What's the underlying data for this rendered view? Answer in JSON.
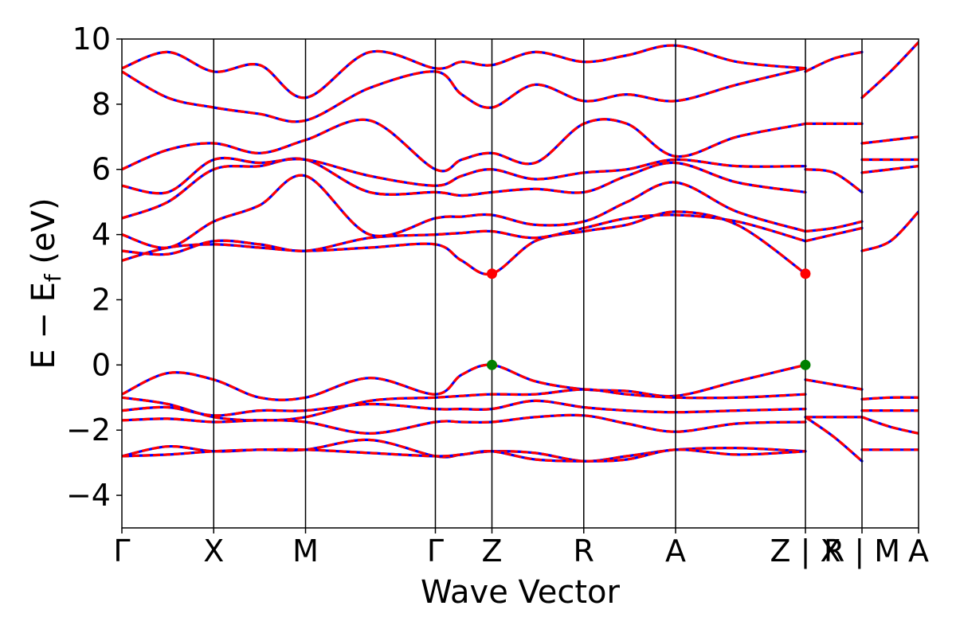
{
  "chart_data": {
    "type": "line",
    "title": "",
    "xlabel": "Wave Vector",
    "ylabel": "E − E_f (eV)",
    "ylabel_parts": {
      "main": "E − E",
      "sub": "f",
      "unit": " (eV)"
    },
    "ylim": [
      -5,
      10
    ],
    "yticks": [
      "−4",
      "−2",
      "0",
      "2",
      "4",
      "6",
      "8",
      "10"
    ],
    "ytick_values": [
      -4,
      -2,
      0,
      2,
      4,
      6,
      8,
      10
    ],
    "kpath_segments": [
      [
        0,
        4
      ],
      [
        4,
        7
      ]
    ],
    "high_symmetry_points": [
      {
        "label": "Γ",
        "k": 0.0
      },
      {
        "label": "X",
        "k": 1.0
      },
      {
        "label": "M",
        "k": 2.0
      },
      {
        "label": "Γ",
        "k": 3.414
      },
      {
        "label": "Z",
        "k": 4.03
      },
      {
        "label": "R",
        "k": 5.03
      },
      {
        "label": "A",
        "k": 6.03
      },
      {
        "label": "Z | X",
        "k": 7.444
      },
      {
        "label": "R | M",
        "k": 8.06
      },
      {
        "label": "A",
        "k": 8.676
      }
    ],
    "band_color_1": "#ff0000",
    "band_color_2": "#0000ff",
    "grid": false,
    "series": [
      {
        "x": [
          0,
          0.5,
          1.0,
          1.5,
          2.0,
          2.7,
          3.414,
          3.7,
          4.03,
          4.5,
          5.03,
          5.5,
          6.03,
          6.7,
          7.444
        ],
        "y": [
          -0.9,
          -0.25,
          -0.45,
          -1.0,
          -1.0,
          -0.4,
          -0.9,
          -0.3,
          0.0,
          -0.5,
          -0.75,
          -0.8,
          -0.95,
          -0.5,
          0.0
        ]
      },
      {
        "x": [
          0,
          0.5,
          1.0,
          1.5,
          2.0,
          2.7,
          3.414,
          3.7,
          4.03,
          4.5,
          5.03,
          5.5,
          6.03,
          6.7,
          7.444
        ],
        "y": [
          -1.0,
          -1.2,
          -1.6,
          -1.7,
          -1.6,
          -1.1,
          -1.0,
          -0.95,
          -0.9,
          -0.9,
          -0.75,
          -0.9,
          -1.0,
          -1.0,
          -0.9
        ]
      },
      {
        "x": [
          0,
          0.5,
          1.0,
          1.5,
          2.0,
          2.7,
          3.414,
          3.7,
          4.03,
          4.5,
          5.03,
          5.5,
          6.03,
          6.7,
          7.444
        ],
        "y": [
          -1.4,
          -1.3,
          -1.55,
          -1.4,
          -1.4,
          -1.2,
          -1.35,
          -1.35,
          -1.35,
          -1.1,
          -1.3,
          -1.4,
          -1.45,
          -1.4,
          -1.35
        ]
      },
      {
        "x": [
          0,
          0.5,
          1.0,
          1.5,
          2.0,
          2.7,
          3.414,
          3.7,
          4.03,
          4.5,
          5.03,
          5.5,
          6.03,
          6.7,
          7.444
        ],
        "y": [
          -1.7,
          -1.65,
          -1.75,
          -1.7,
          -1.75,
          -2.1,
          -1.75,
          -1.75,
          -1.75,
          -1.6,
          -1.55,
          -1.8,
          -2.05,
          -1.8,
          -1.75
        ]
      },
      {
        "x": [
          0,
          0.5,
          1.0,
          1.5,
          2.0,
          2.7,
          3.414,
          3.7,
          4.03,
          4.5,
          5.03,
          5.5,
          6.03,
          6.7,
          7.444
        ],
        "y": [
          -2.8,
          -2.5,
          -2.65,
          -2.6,
          -2.6,
          -2.3,
          -2.8,
          -2.75,
          -2.65,
          -2.7,
          -2.95,
          -2.8,
          -2.6,
          -2.55,
          -2.65
        ]
      },
      {
        "x": [
          0,
          0.5,
          1.0,
          1.5,
          2.0,
          2.7,
          3.414,
          3.7,
          4.03,
          4.5,
          5.03,
          5.5,
          6.03,
          6.7,
          7.444
        ],
        "y": [
          -2.8,
          -2.75,
          -2.65,
          -2.6,
          -2.6,
          -2.7,
          -2.8,
          -2.75,
          -2.65,
          -2.9,
          -2.95,
          -2.9,
          -2.6,
          -2.75,
          -2.65
        ]
      },
      {
        "x": [
          0,
          0.5,
          1.0,
          1.5,
          2.0,
          2.7,
          3.414,
          3.7,
          4.03,
          4.5,
          5.03,
          5.5,
          6.03,
          6.7,
          7.444
        ],
        "y": [
          3.2,
          3.6,
          3.7,
          3.6,
          3.5,
          3.6,
          3.7,
          3.2,
          2.8,
          3.8,
          4.1,
          4.3,
          4.7,
          4.3,
          2.8
        ]
      },
      {
        "x": [
          0,
          0.5,
          1.0,
          1.5,
          2.0,
          2.7,
          3.414,
          3.7,
          4.03,
          4.5,
          5.03,
          5.5,
          6.03,
          6.7,
          7.444
        ],
        "y": [
          3.5,
          3.4,
          3.8,
          3.7,
          3.5,
          3.9,
          4.0,
          4.05,
          4.1,
          3.9,
          4.2,
          4.5,
          4.6,
          4.4,
          3.8
        ]
      },
      {
        "x": [
          0,
          0.5,
          1.0,
          1.5,
          2.0,
          2.7,
          3.414,
          3.7,
          4.03,
          4.5,
          5.03,
          5.5,
          6.03,
          6.7,
          7.444
        ],
        "y": [
          4.0,
          3.6,
          4.4,
          4.9,
          5.8,
          4.0,
          4.5,
          4.55,
          4.6,
          4.3,
          4.4,
          5.0,
          5.6,
          4.7,
          4.1
        ]
      },
      {
        "x": [
          0,
          0.5,
          1.0,
          1.5,
          2.0,
          2.7,
          3.414,
          3.7,
          4.03,
          4.5,
          5.03,
          5.5,
          6.03,
          6.7,
          7.444
        ],
        "y": [
          4.5,
          5.0,
          6.0,
          6.1,
          6.3,
          5.3,
          5.3,
          5.2,
          5.3,
          5.4,
          5.3,
          5.8,
          6.2,
          5.6,
          5.3
        ]
      },
      {
        "x": [
          0,
          0.5,
          1.0,
          1.5,
          2.0,
          2.7,
          3.414,
          3.7,
          4.03,
          4.5,
          5.03,
          5.5,
          6.03,
          6.7,
          7.444
        ],
        "y": [
          5.5,
          5.3,
          6.3,
          6.2,
          6.3,
          5.8,
          5.5,
          5.8,
          6.0,
          5.7,
          5.9,
          6.0,
          6.3,
          6.1,
          6.1
        ]
      },
      {
        "x": [
          0,
          0.5,
          1.0,
          1.5,
          2.0,
          2.7,
          3.414,
          3.7,
          4.03,
          4.5,
          5.03,
          5.5,
          6.03,
          6.7,
          7.444
        ],
        "y": [
          6.0,
          6.6,
          6.8,
          6.5,
          6.9,
          7.5,
          6.0,
          6.3,
          6.5,
          6.2,
          7.4,
          7.4,
          6.4,
          7.0,
          7.4
        ]
      },
      {
        "x": [
          0,
          0.5,
          1.0,
          1.5,
          2.0,
          2.7,
          3.414,
          3.7,
          4.03,
          4.5,
          5.03,
          5.5,
          6.03,
          6.7,
          7.444
        ],
        "y": [
          9.0,
          8.2,
          7.9,
          7.7,
          7.5,
          8.5,
          9.0,
          8.3,
          7.9,
          8.6,
          8.1,
          8.3,
          8.1,
          8.6,
          9.1
        ]
      },
      {
        "x": [
          0,
          0.5,
          1.0,
          1.5,
          2.0,
          2.7,
          3.414,
          3.7,
          4.03,
          4.5,
          5.03,
          5.5,
          6.03,
          6.7,
          7.444
        ],
        "y": [
          9.1,
          9.6,
          9.0,
          9.2,
          8.2,
          9.6,
          9.1,
          9.3,
          9.2,
          9.6,
          9.3,
          9.5,
          9.8,
          9.3,
          9.1
        ]
      },
      {
        "x": [
          7.444,
          7.75,
          8.06
        ],
        "y": [
          -0.45,
          -0.6,
          -0.75
        ]
      },
      {
        "x": [
          7.444,
          7.75,
          8.06
        ],
        "y": [
          -1.6,
          -1.6,
          -1.6
        ]
      },
      {
        "x": [
          7.444,
          7.75,
          8.06
        ],
        "y": [
          -1.6,
          -2.2,
          -2.95
        ]
      },
      {
        "x": [
          7.444,
          7.75,
          8.06
        ],
        "y": [
          3.8,
          4.0,
          4.2
        ]
      },
      {
        "x": [
          7.444,
          7.75,
          8.06
        ],
        "y": [
          4.1,
          4.2,
          4.4
        ]
      },
      {
        "x": [
          7.444,
          7.75,
          8.06
        ],
        "y": [
          6.0,
          5.9,
          5.3
        ]
      },
      {
        "x": [
          7.444,
          7.75,
          8.06
        ],
        "y": [
          7.4,
          7.4,
          7.4
        ]
      },
      {
        "x": [
          7.444,
          7.75,
          8.06
        ],
        "y": [
          9.0,
          9.4,
          9.6
        ]
      },
      {
        "x": [
          8.06,
          8.37,
          8.676
        ],
        "y": [
          -1.05,
          -1.0,
          -1.0
        ]
      },
      {
        "x": [
          8.06,
          8.37,
          8.676
        ],
        "y": [
          -1.4,
          -1.4,
          -1.4
        ]
      },
      {
        "x": [
          8.06,
          8.37,
          8.676
        ],
        "y": [
          -1.6,
          -1.9,
          -2.1
        ]
      },
      {
        "x": [
          8.06,
          8.37,
          8.676
        ],
        "y": [
          -2.6,
          -2.6,
          -2.6
        ]
      },
      {
        "x": [
          8.06,
          8.37,
          8.676
        ],
        "y": [
          3.5,
          3.8,
          4.7
        ]
      },
      {
        "x": [
          8.06,
          8.37,
          8.676
        ],
        "y": [
          5.9,
          6.0,
          6.1
        ]
      },
      {
        "x": [
          8.06,
          8.37,
          8.676
        ],
        "y": [
          6.3,
          6.3,
          6.3
        ]
      },
      {
        "x": [
          8.06,
          8.37,
          8.676
        ],
        "y": [
          6.8,
          6.9,
          7.0
        ]
      },
      {
        "x": [
          8.06,
          8.37,
          8.676
        ],
        "y": [
          8.2,
          9.0,
          9.9
        ]
      }
    ],
    "markers": [
      {
        "k": 4.03,
        "e": 2.8,
        "color": "#ff0000",
        "role": "conduction band minimum"
      },
      {
        "k": 7.444,
        "e": 2.8,
        "color": "#ff0000",
        "role": "conduction band minimum"
      },
      {
        "k": 4.03,
        "e": 0.0,
        "color": "#008000",
        "role": "valence band maximum"
      },
      {
        "k": 7.444,
        "e": 0.0,
        "color": "#008000",
        "role": "valence band maximum"
      }
    ]
  }
}
